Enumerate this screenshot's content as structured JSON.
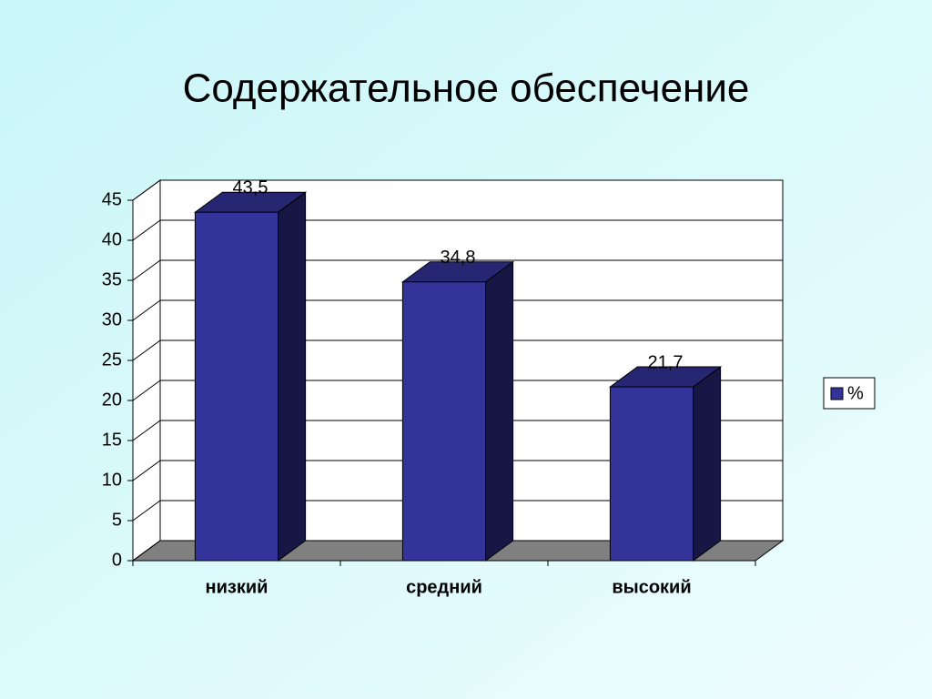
{
  "chart_data": {
    "type": "bar3d",
    "title": "Содержательное обеспечение",
    "categories": [
      "низкий",
      "средний",
      "высокий"
    ],
    "series": [
      {
        "name": "%",
        "color": "#333399",
        "values": [
          43.5,
          34.8,
          21.7
        ],
        "value_labels": [
          "43,5",
          "34,8",
          "21,7"
        ]
      }
    ],
    "ylim": [
      0,
      45
    ],
    "yticks": [
      0,
      5,
      10,
      15,
      20,
      25,
      30,
      35,
      40,
      45
    ],
    "grid": true,
    "legend": "right"
  }
}
